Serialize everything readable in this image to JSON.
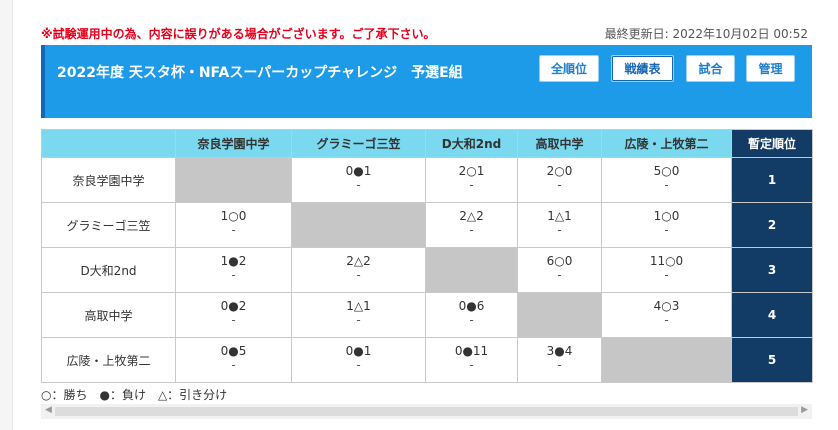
{
  "notice": "※試験運用中の為、内容に誤りがある場合がございます。ご了承下さい。",
  "updated": "最終更新日: 2022年10月02日 00:52",
  "title": "2022年度 天スタ杯・NFAスーパーカップチャレンジ　予選E組",
  "nav": {
    "standings": "全順位",
    "results": "戦績表",
    "matches": "試合",
    "manage": "管理"
  },
  "table": {
    "corner": "",
    "columns": [
      "奈良学園中学",
      "グラミーゴ三笠",
      "D大和2nd",
      "高取中学",
      "広陵・上牧第二"
    ],
    "rank_header": "暫定順位",
    "rows": [
      {
        "team": "奈良学園中学",
        "cells": [
          {
            "score": "",
            "sub": "",
            "self": true
          },
          {
            "score": "0●1",
            "sub": "-"
          },
          {
            "score": "2○1",
            "sub": "-"
          },
          {
            "score": "2○0",
            "sub": "-"
          },
          {
            "score": "5○0",
            "sub": "-"
          }
        ],
        "rank": "1"
      },
      {
        "team": "グラミーゴ三笠",
        "cells": [
          {
            "score": "1○0",
            "sub": "-"
          },
          {
            "score": "",
            "sub": "",
            "self": true
          },
          {
            "score": "2△2",
            "sub": "-"
          },
          {
            "score": "1△1",
            "sub": "-"
          },
          {
            "score": "1○0",
            "sub": "-"
          }
        ],
        "rank": "2"
      },
      {
        "team": "D大和2nd",
        "cells": [
          {
            "score": "1●2",
            "sub": "-"
          },
          {
            "score": "2△2",
            "sub": "-"
          },
          {
            "score": "",
            "sub": "",
            "self": true
          },
          {
            "score": "6○0",
            "sub": "-"
          },
          {
            "score": "11○0",
            "sub": "-"
          }
        ],
        "rank": "3"
      },
      {
        "team": "高取中学",
        "cells": [
          {
            "score": "0●2",
            "sub": "-"
          },
          {
            "score": "1△1",
            "sub": "-"
          },
          {
            "score": "0●6",
            "sub": "-"
          },
          {
            "score": "",
            "sub": "",
            "self": true
          },
          {
            "score": "4○3",
            "sub": "-"
          }
        ],
        "rank": "4"
      },
      {
        "team": "広陵・上牧第二",
        "cells": [
          {
            "score": "0●5",
            "sub": "-"
          },
          {
            "score": "0●1",
            "sub": "-"
          },
          {
            "score": "0●11",
            "sub": "-"
          },
          {
            "score": "3●4",
            "sub": "-"
          },
          {
            "score": "",
            "sub": "",
            "self": true
          }
        ],
        "rank": "5"
      }
    ]
  },
  "legend": "○：勝ち　●：負け　△：引き分け",
  "colors": {
    "title_bg": "#1e9be8",
    "header_bg": "#7ad9ef",
    "rank_bg": "#123b66",
    "self_cell": "#c6c6c6",
    "notice": "#e8001c"
  }
}
